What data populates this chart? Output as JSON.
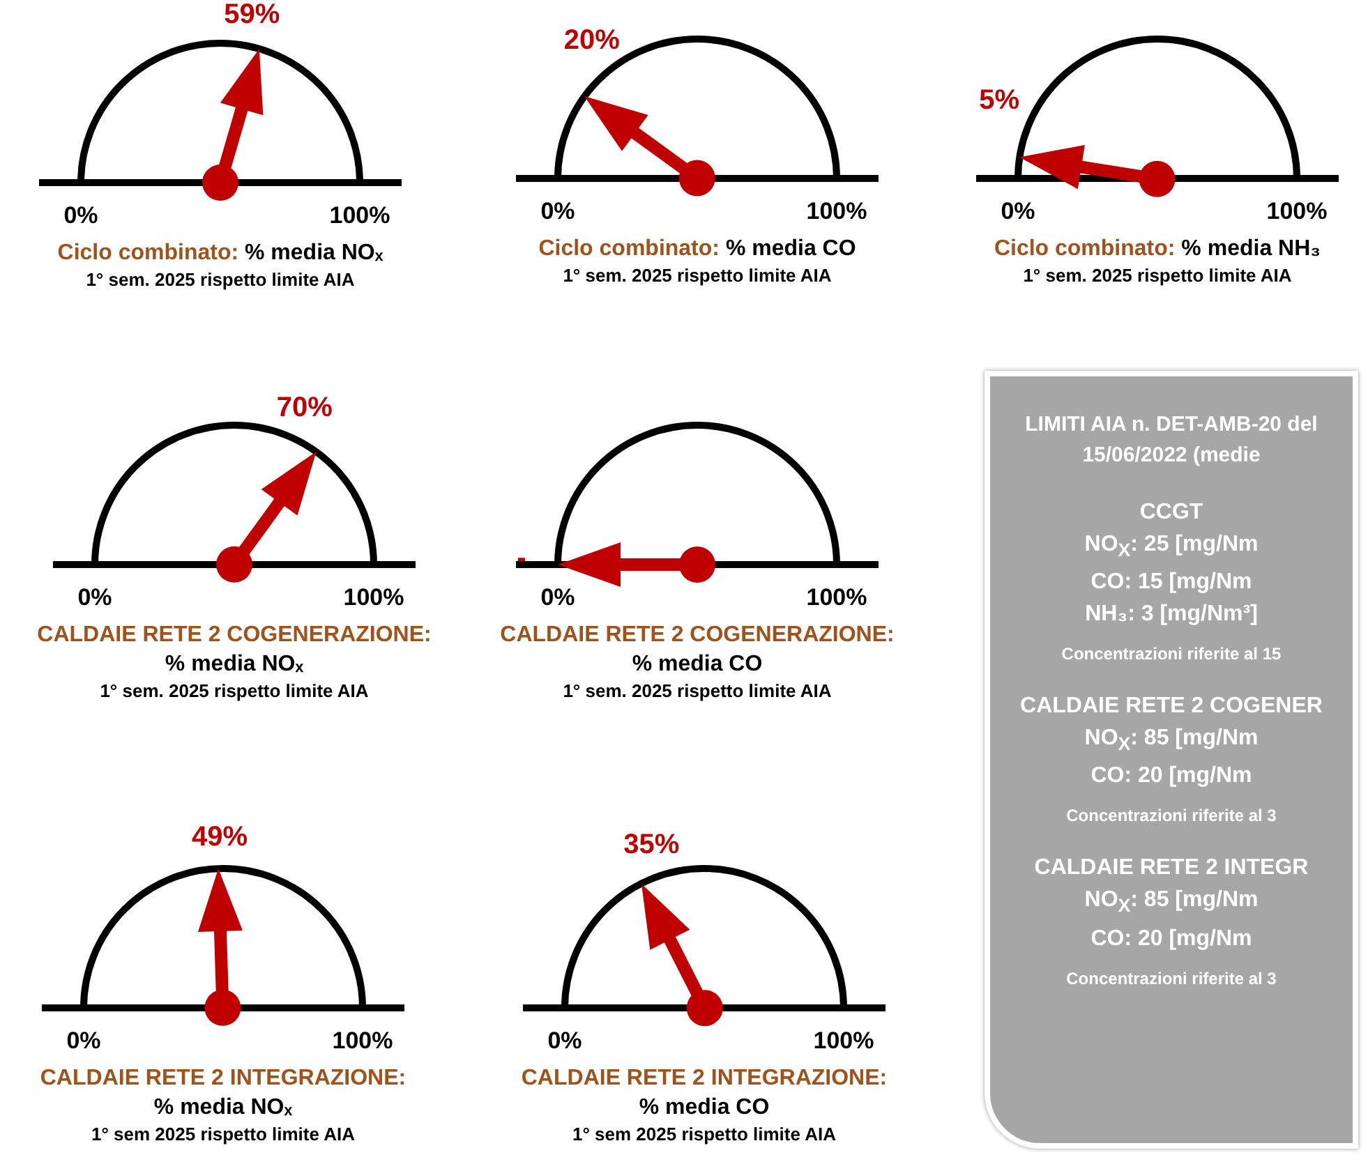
{
  "chart_data": [
    {
      "type": "other",
      "title": "Ciclo combinato:",
      "subtitle": "% media NOₓ",
      "annotations": [
        "0%",
        "100%",
        "1° sem. 2025 rispetto limite AIA"
      ],
      "values": [
        59
      ],
      "value_labels": [
        "59%"
      ]
    },
    {
      "type": "other",
      "title": "Ciclo combinato:",
      "subtitle": "% media CO",
      "annotations": [
        "0%",
        "100%",
        "1° sem. 2025 rispetto limite AIA"
      ],
      "values": [
        20
      ],
      "value_labels": [
        "20%"
      ]
    },
    {
      "type": "other",
      "title": "Ciclo combinato:",
      "subtitle": "% media NH₃",
      "annotations": [
        "0%",
        "100%",
        "1° sem. 2025 rispetto limite AIA"
      ],
      "values": [
        5
      ],
      "value_labels": [
        "5%"
      ]
    },
    {
      "type": "other",
      "title": "CALDAIE RETE 2 COGENERAZIONE:",
      "subtitle": "% media NOₓ",
      "annotations": [
        "0%",
        "100%",
        "1° sem. 2025 rispetto limite AIA"
      ],
      "values": [
        70
      ],
      "value_labels": [
        "70%"
      ]
    },
    {
      "type": "other",
      "title": "CALDAIE RETE 2 COGENERAZIONE:",
      "subtitle": "% media CO",
      "annotations": [
        "0%",
        "100%",
        "1° sem. 2025 rispetto limite AIA"
      ],
      "values": [
        null
      ],
      "value_labels": [
        "-"
      ]
    },
    {
      "type": "other",
      "title": "CALDAIE RETE 2 INTEGRAZIONE:",
      "subtitle": "% media NOₓ",
      "annotations": [
        "0%",
        "100%",
        "1° sem 2025 rispetto limite AIA"
      ],
      "values": [
        49
      ],
      "value_labels": [
        "49%"
      ]
    },
    {
      "type": "other",
      "title": "CALDAIE RETE 2 INTEGRAZIONE:",
      "subtitle": "% media CO",
      "annotations": [
        "0%",
        "100%",
        "1° sem 2025 rispetto limite AIA"
      ],
      "values": [
        35
      ],
      "value_labels": [
        "35%"
      ]
    },
    {
      "type": "other",
      "title": "LIMITI AIA n. DET-AMB-20 del 15/06/2022 (medie",
      "annotations": [
        "CCGT",
        "NO$_{X}$: 25 [mg/Nm",
        "CO: 15 [mg/Nm",
        "NH₃: 3 [mg/Nm³]",
        "Concentrazioni riferite al 15",
        "CALDAIE RETE 2 COGENER",
        "NO$_{X}$: 85 [mg/Nm",
        "CO: 20 [mg/Nm",
        "Concentrazioni riferite al 3",
        "CALDAIE RETE 2 INTEGR",
        "NO$_{X}$: 85 [mg/Nm",
        "CO: 20 [mg/Nm",
        "Concentrazioni riferite al 3"
      ]
    }
  ]
}
